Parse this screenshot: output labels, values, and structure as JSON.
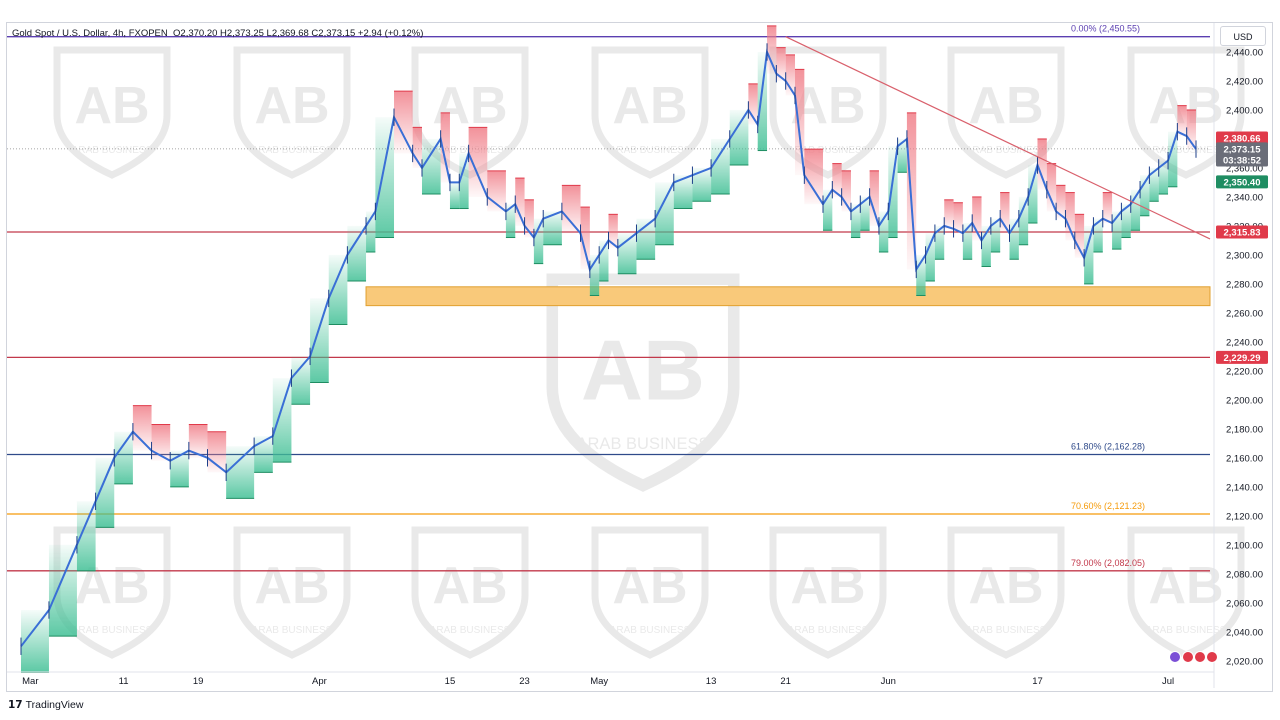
{
  "header": {
    "symbol": "Gold Spot / U.S. Dollar, 4h, FXOPEN",
    "ohlc": "O2,370.20  H2,373.25  L2,369.68  C2,373.15  +2.94 (+0.12%)"
  },
  "currency_button": "USD",
  "footer": {
    "brand": "TradingView",
    "logo": "17"
  },
  "colors": {
    "fib_0": "#5b3fb1",
    "fib_618": "#2f4a8a",
    "fib_706": "#f59b0b",
    "fib_79": "#c2394b",
    "support": "#c2394b",
    "trendline": "#d9606c",
    "demand_zone": "#f9c97a",
    "candles": "#3a6fd6",
    "price_badge": "#e03a4a",
    "current_badge": "#6a6d78",
    "green_badge": "#1f8d62"
  },
  "watermark_text": "ARAB BUSINESS",
  "chart_data": {
    "type": "line",
    "title": "",
    "symbol": "Gold Spot / U.S. Dollar",
    "timeframe": "4h",
    "ylim": [
      2015,
      2460
    ],
    "y_ticks": [
      2020,
      2040,
      2060,
      2080,
      2100,
      2120,
      2140,
      2160,
      2180,
      2200,
      2220,
      2240,
      2260,
      2280,
      2300,
      2320,
      2340,
      2360,
      2380,
      2400,
      2420,
      2440
    ],
    "y_tick_labels": [
      "2,020.00",
      "2,040.00",
      "2,060.00",
      "2,080.00",
      "2,100.00",
      "2,120.00",
      "2,140.00",
      "2,160.00",
      "2,180.00",
      "2,200.00",
      "2,220.00",
      "2,240.00",
      "2,260.00",
      "2,280.00",
      "2,300.00",
      "2,320.00",
      "2,340.00",
      "2,360.00",
      "2,380.00",
      "2,400.00",
      "2,420.00",
      "2,440.00"
    ],
    "x_ticks": [
      "Mar",
      "11",
      "19",
      "Apr",
      "15",
      "23",
      "May",
      "13",
      "21",
      "Jun",
      "17",
      "Jul"
    ],
    "x_tick_days": [
      1,
      11,
      19,
      32,
      46,
      54,
      62,
      74,
      82,
      93,
      109,
      123
    ],
    "xlim": [
      -1.5,
      127.5
    ],
    "price_series": {
      "name": "",
      "x_days": [
        0,
        3,
        6,
        8,
        10,
        12,
        14,
        16,
        18,
        20,
        22,
        25,
        27,
        29,
        31,
        33,
        35,
        37,
        38,
        40,
        42,
        43,
        45,
        46,
        47,
        48,
        50,
        52,
        53,
        54,
        55,
        56,
        58,
        60,
        61,
        62,
        63,
        64,
        66,
        68,
        70,
        72,
        74,
        76,
        78,
        79,
        80,
        81,
        82,
        83,
        84,
        86,
        87,
        88,
        89,
        90,
        91,
        92,
        93,
        94,
        95,
        96,
        97,
        98,
        99,
        100,
        101,
        102,
        103,
        104,
        105,
        106,
        107,
        108,
        109,
        110,
        111,
        112,
        113,
        114,
        115,
        116,
        117,
        118,
        119,
        120,
        121,
        122,
        123,
        124,
        125,
        126
      ],
      "close": [
        2030,
        2055,
        2100,
        2130,
        2160,
        2178,
        2165,
        2158,
        2165,
        2160,
        2150,
        2168,
        2175,
        2215,
        2230,
        2270,
        2300,
        2320,
        2330,
        2395,
        2370,
        2360,
        2380,
        2350,
        2350,
        2370,
        2340,
        2330,
        2335,
        2320,
        2312,
        2325,
        2330,
        2315,
        2290,
        2300,
        2310,
        2305,
        2315,
        2325,
        2350,
        2355,
        2360,
        2380,
        2400,
        2390,
        2440,
        2425,
        2420,
        2410,
        2355,
        2335,
        2345,
        2340,
        2330,
        2335,
        2340,
        2320,
        2330,
        2375,
        2380,
        2290,
        2300,
        2315,
        2320,
        2318,
        2315,
        2322,
        2310,
        2320,
        2325,
        2315,
        2325,
        2340,
        2362,
        2345,
        2330,
        2325,
        2310,
        2298,
        2320,
        2325,
        2322,
        2330,
        2335,
        2345,
        2355,
        2360,
        2365,
        2385,
        2382,
        2373
      ]
    },
    "levels": [
      {
        "label": "0.00% (2,450.55)",
        "value": 2450.55,
        "kind": "fib_0"
      },
      {
        "label": "61.80% (2,162.28)",
        "value": 2162.28,
        "kind": "fib_618"
      },
      {
        "label": "70.60% (2,121.23)",
        "value": 2121.23,
        "kind": "fib_706"
      },
      {
        "label": "79.00% (2,082.05)",
        "value": 2082.05,
        "kind": "fib_79"
      },
      {
        "label": "",
        "value": 2315.83,
        "kind": "support"
      },
      {
        "label": "",
        "value": 2229.29,
        "kind": "support"
      }
    ],
    "price_badges": [
      {
        "text": "2,380.66",
        "value": 2380.66,
        "kind": "price_badge"
      },
      {
        "text": "2,373.15",
        "value": 2373.15,
        "kind": "current_badge"
      },
      {
        "text": "03:38:52",
        "value": 2365.5,
        "kind": "current_badge"
      },
      {
        "text": "2,350.40",
        "value": 2350.4,
        "kind": "green_badge"
      },
      {
        "text": "2,315.83",
        "value": 2315.83,
        "kind": "price_badge"
      },
      {
        "text": "2,229.29",
        "value": 2229.29,
        "kind": "price_badge"
      }
    ],
    "demand_zone": {
      "x_start": 37,
      "x_end": 127.5,
      "y_low": 2265,
      "y_high": 2278
    },
    "trendline": {
      "x1": 82,
      "y1": 2450.55,
      "x2": 127.5,
      "y2": 2311
    },
    "current_price": 2373.15,
    "grid": false,
    "legend": "none"
  }
}
